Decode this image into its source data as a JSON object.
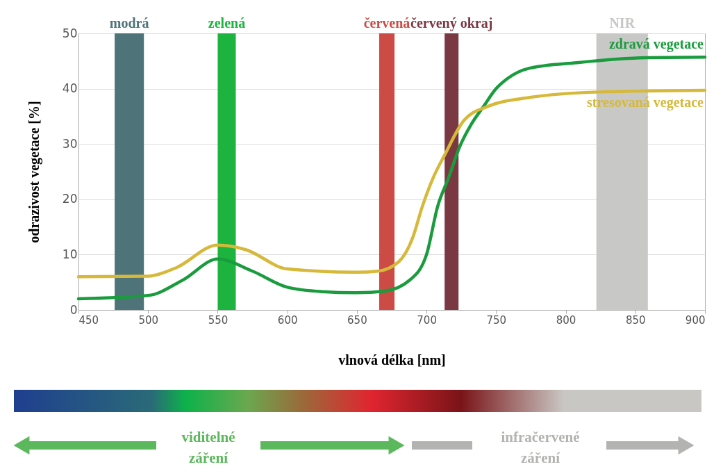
{
  "chart_data": {
    "type": "line",
    "xlabel": "vlnová délka [nm]",
    "ylabel": "odrazivost vegetace [%]",
    "xlim": [
      450,
      900
    ],
    "xticks": [
      450,
      500,
      550,
      600,
      650,
      700,
      750,
      800,
      850,
      900
    ],
    "ylim": [
      0,
      50
    ],
    "yticks": [
      0,
      10,
      20,
      30,
      40,
      50
    ],
    "grid": "y",
    "line_style": "solid",
    "marker": "none",
    "series": [
      {
        "name": "zdravá vegetace",
        "color": "#1a9c3e",
        "x": [
          450,
          500,
          525,
          550,
          575,
          600,
          625,
          650,
          670,
          688,
          700,
          708,
          716,
          724,
          732,
          741,
          750,
          758,
          774,
          808,
          858,
          900
        ],
        "values": [
          2.0,
          2.6,
          5.4,
          9.2,
          7.0,
          4.1,
          3.3,
          3.1,
          3.4,
          5.4,
          10,
          18.7,
          24,
          29.6,
          33.5,
          36.8,
          40,
          41.8,
          43.7,
          44.7,
          45.6,
          45.7
        ]
      },
      {
        "name": "stresovaná vegetace",
        "color": "#d6b93a",
        "x": [
          450,
          500,
          520,
          550,
          570,
          600,
          650,
          665,
          680,
          690,
          697,
          705,
          713,
          727,
          744,
          774,
          824,
          900
        ],
        "values": [
          6.0,
          6.1,
          7.6,
          11.7,
          10.9,
          7.4,
          6.8,
          7.0,
          8.7,
          13,
          18.7,
          24,
          28,
          34.3,
          36.8,
          38.4,
          39.4,
          39.7
        ]
      }
    ],
    "bands": [
      {
        "axis": "x",
        "from": 476,
        "to": 497,
        "label": "modrá",
        "color": "#4e7379"
      },
      {
        "axis": "x",
        "from": 550,
        "to": 563,
        "label": "zelená",
        "color": "#1db33f"
      },
      {
        "axis": "x",
        "from": 666,
        "to": 677,
        "label": "červená",
        "color": "#cc4b45"
      },
      {
        "axis": "x",
        "from": 713,
        "to": 723,
        "label": "červený okraj",
        "color": "#7a3843"
      },
      {
        "axis": "x",
        "from": 822,
        "to": 859,
        "label": "NIR",
        "color": "#c8c8c6"
      }
    ],
    "annotations": [
      "viditelné záření",
      "infračervené záření"
    ]
  }
}
